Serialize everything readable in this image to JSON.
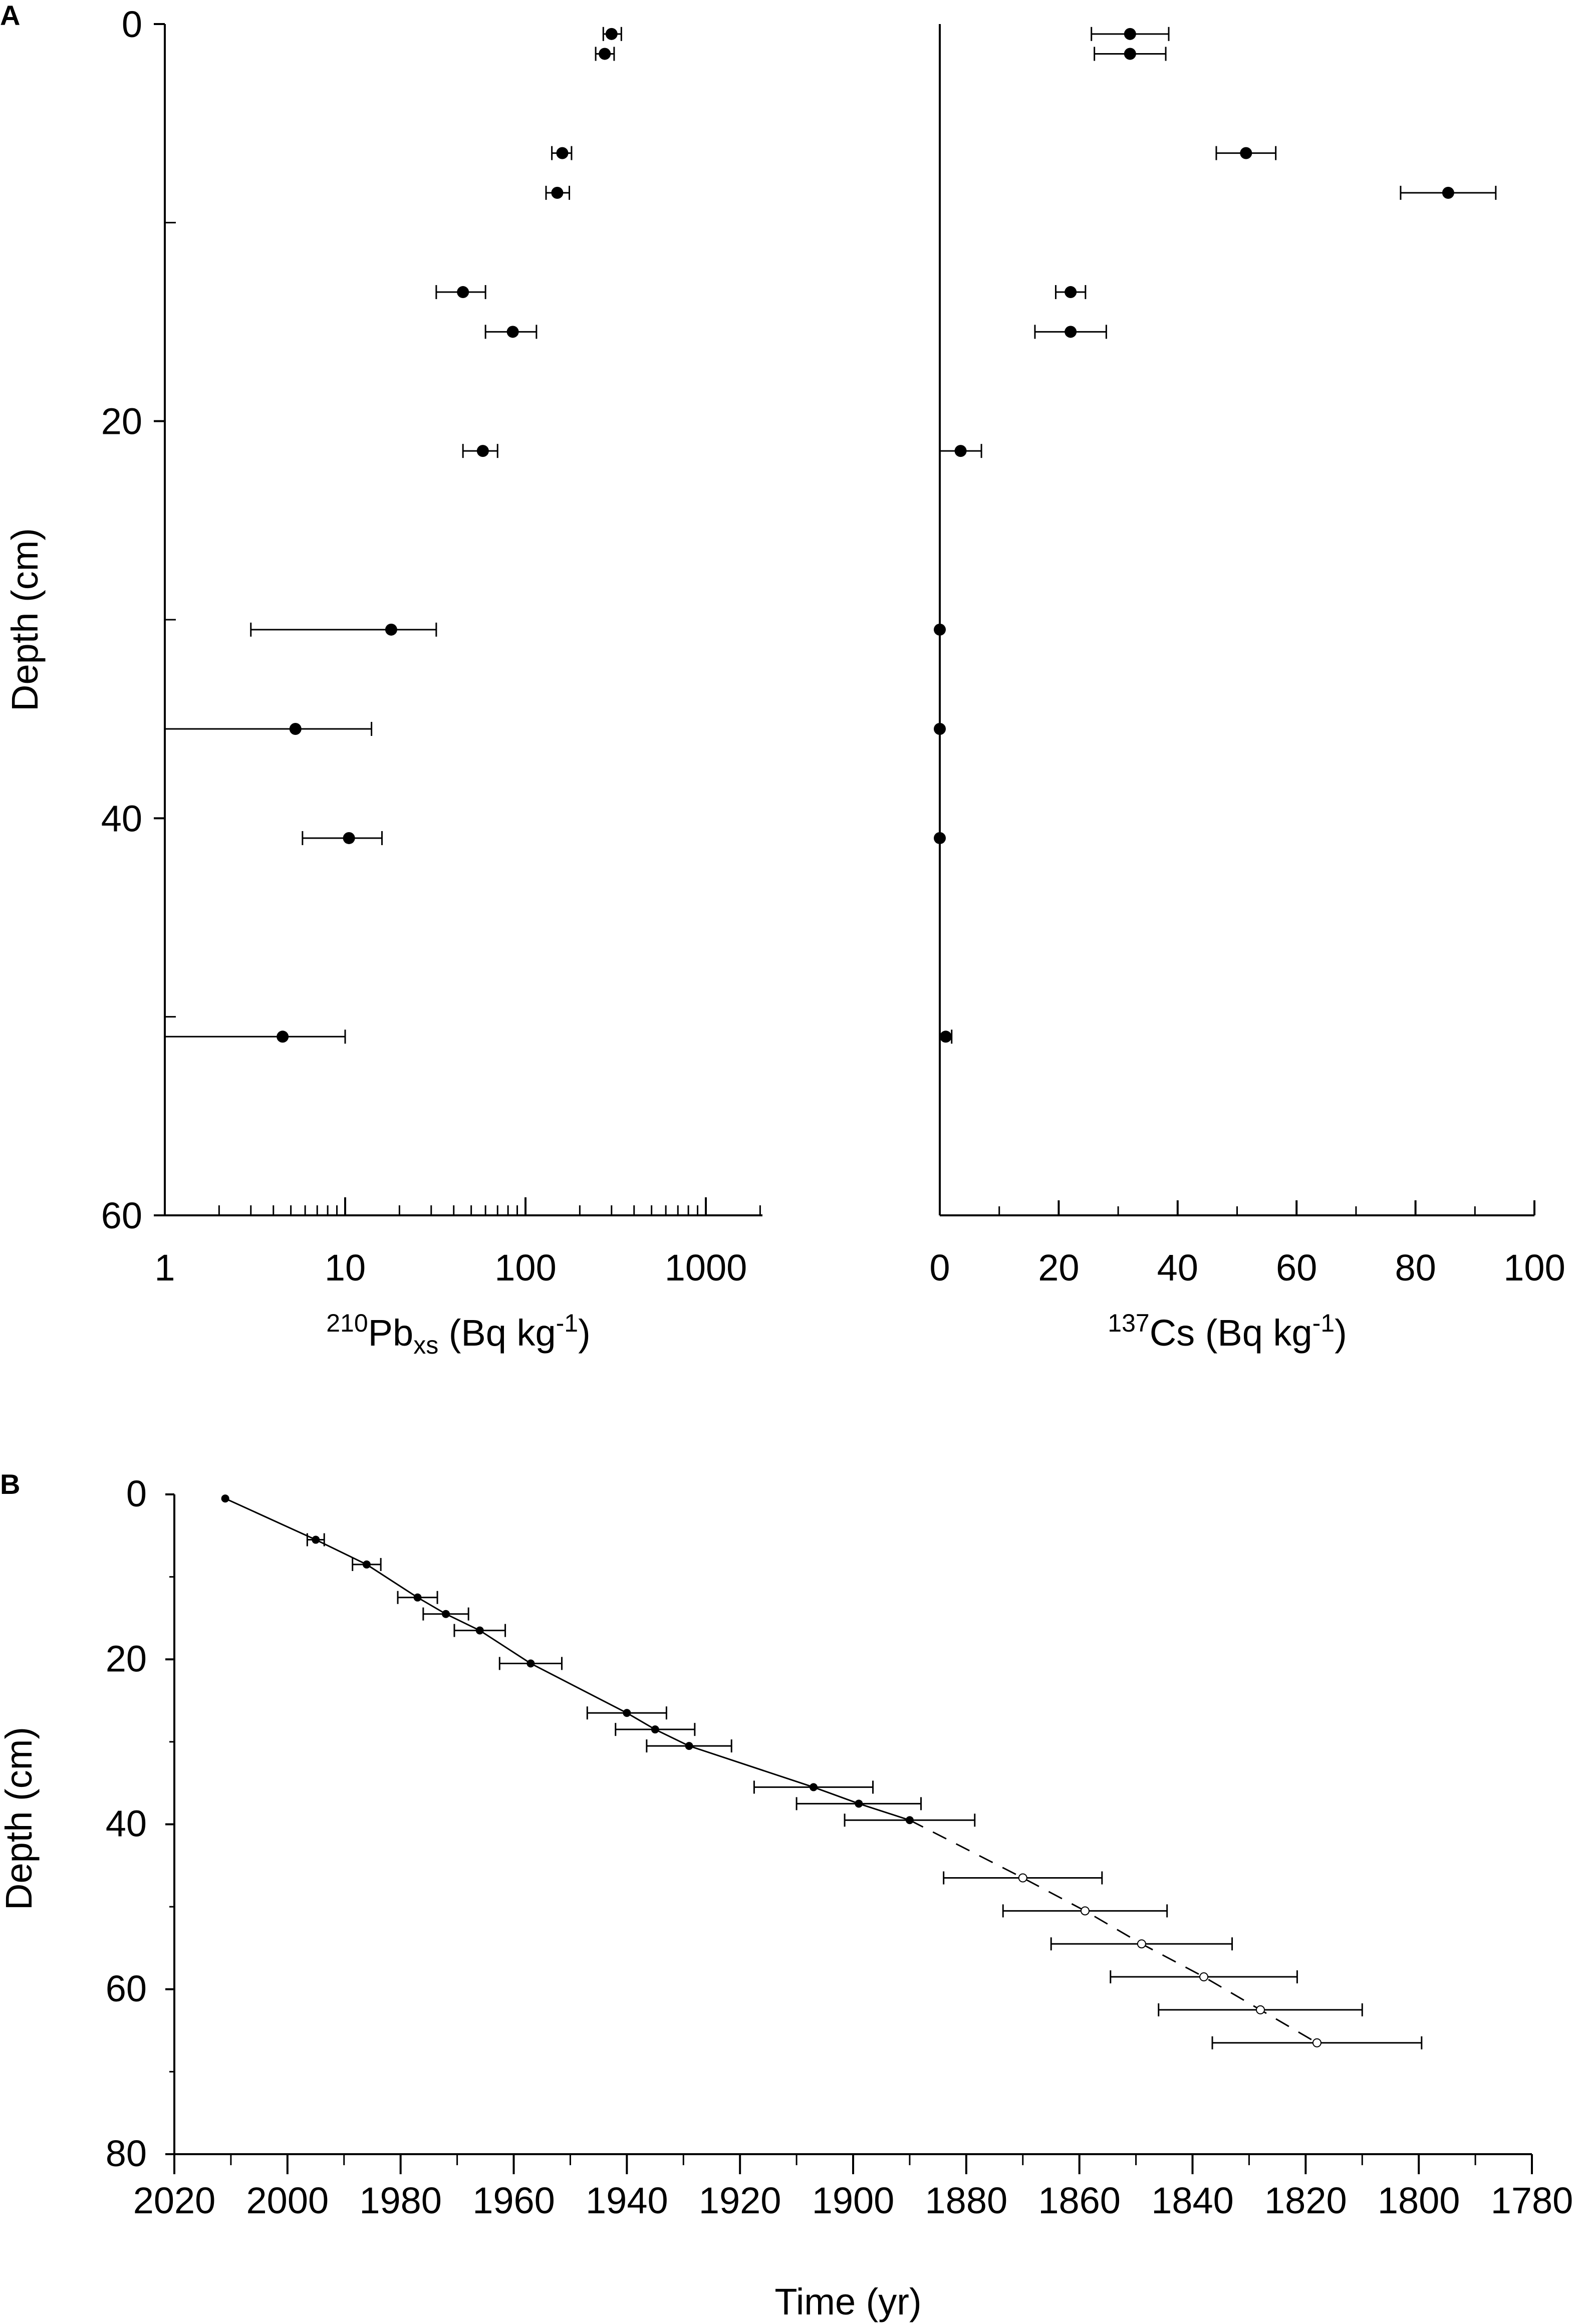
{
  "chart_data": [
    {
      "panel": "A",
      "type": "scatter",
      "title": "",
      "xlabel": {
        "sup": "210",
        "main": "Pb",
        "sub": "xs",
        "unit": " (Bq kg",
        "unit_sup": "-1",
        "close": ")"
      },
      "ylabel": "Depth (cm)",
      "xscale": "log",
      "xlim": [
        1,
        2000
      ],
      "ylim": [
        60,
        0
      ],
      "xticks": [
        1,
        10,
        100,
        1000
      ],
      "xtick_labels": [
        "1",
        "10",
        "100",
        "1000"
      ],
      "yticks": [
        0,
        20,
        40,
        60
      ],
      "ytick_labels": [
        "0",
        "20",
        "40",
        "60"
      ],
      "points": [
        {
          "y": 0.5,
          "x": 300,
          "xerr_low": 270,
          "xerr_high": 340
        },
        {
          "y": 1.5,
          "x": 275,
          "xerr_low": 245,
          "xerr_high": 310
        },
        {
          "y": 6.5,
          "x": 160,
          "xerr_low": 140,
          "xerr_high": 180
        },
        {
          "y": 8.5,
          "x": 150,
          "xerr_low": 130,
          "xerr_high": 175
        },
        {
          "y": 13.5,
          "x": 45,
          "xerr_low": 32,
          "xerr_high": 60
        },
        {
          "y": 15.5,
          "x": 85,
          "xerr_low": 60,
          "xerr_high": 115
        },
        {
          "y": 21.5,
          "x": 58,
          "xerr_low": 45,
          "xerr_high": 70
        },
        {
          "y": 30.5,
          "x": 18,
          "xerr_low": 3,
          "xerr_high": 32
        },
        {
          "y": 35.5,
          "x": 5.3,
          "xerr_low": 1,
          "xerr_high": 14
        },
        {
          "y": 41,
          "x": 10.5,
          "xerr_low": 5.8,
          "xerr_high": 16
        },
        {
          "y": 51,
          "x": 4.5,
          "xerr_low": 1,
          "xerr_high": 10
        }
      ]
    },
    {
      "panel": "",
      "type": "scatter",
      "title": "",
      "xlabel": {
        "sup": "137",
        "main": "Cs",
        "sub": "",
        "unit": " (Bq kg",
        "unit_sup": "-1",
        "close": ")"
      },
      "ylabel": "",
      "xlim": [
        0,
        100
      ],
      "ylim": [
        60,
        0
      ],
      "xticks": [
        0,
        20,
        40,
        60,
        80,
        100
      ],
      "xtick_labels": [
        "0",
        "20",
        "40",
        "60",
        "80",
        "100"
      ],
      "points": [
        {
          "y": 0.5,
          "x": 32,
          "xerr": 6.5
        },
        {
          "y": 1.5,
          "x": 32,
          "xerr": 6
        },
        {
          "y": 6.5,
          "x": 51.5,
          "xerr": 5
        },
        {
          "y": 8.5,
          "x": 85.5,
          "xerr": 8
        },
        {
          "y": 13.5,
          "x": 22,
          "xerr": 2.5
        },
        {
          "y": 15.5,
          "x": 22,
          "xerr": 6
        },
        {
          "y": 21.5,
          "x": 3.5,
          "xerr": 3.5
        },
        {
          "y": 30.5,
          "x": 0,
          "xerr": 0
        },
        {
          "y": 35.5,
          "x": 0,
          "xerr": 0
        },
        {
          "y": 41,
          "x": 0,
          "xerr": 0
        },
        {
          "y": 51,
          "x": 1,
          "xerr": 1
        }
      ]
    },
    {
      "panel": "B",
      "type": "line",
      "title": "",
      "xlabel": "Time (yr)",
      "ylabel": "Depth (cm)",
      "xlim": [
        2020,
        1780
      ],
      "ylim": [
        80,
        0
      ],
      "xticks": [
        2020,
        2000,
        1980,
        1960,
        1940,
        1920,
        1900,
        1880,
        1860,
        1840,
        1820,
        1800,
        1780
      ],
      "xtick_labels": [
        "2020",
        "2000",
        "1980",
        "1960",
        "1940",
        "1920",
        "1900",
        "1880",
        "1860",
        "1840",
        "1820",
        "1800",
        "1780"
      ],
      "yticks": [
        0,
        20,
        40,
        60,
        80
      ],
      "ytick_labels": [
        "0",
        "20",
        "40",
        "60",
        "80"
      ],
      "measured": [
        {
          "year": 2011,
          "depth": 0.5,
          "err": 0
        },
        {
          "year": 1995,
          "depth": 5.5,
          "err": 1.5
        },
        {
          "year": 1986,
          "depth": 8.5,
          "err": 2.5
        },
        {
          "year": 1977,
          "depth": 12.5,
          "err": 3.5
        },
        {
          "year": 1972,
          "depth": 14.5,
          "err": 4
        },
        {
          "year": 1966,
          "depth": 16.5,
          "err": 4.5
        },
        {
          "year": 1957,
          "depth": 20.5,
          "err": 5.5
        },
        {
          "year": 1940,
          "depth": 26.5,
          "err": 7
        },
        {
          "year": 1935,
          "depth": 28.5,
          "err": 7
        },
        {
          "year": 1929,
          "depth": 30.5,
          "err": 7.5
        },
        {
          "year": 1907,
          "depth": 35.5,
          "err": 10.5
        },
        {
          "year": 1899,
          "depth": 37.5,
          "err": 11
        },
        {
          "year": 1890,
          "depth": 39.5,
          "err": 11.5
        }
      ],
      "extrapolated": [
        {
          "year": 1870,
          "depth": 46.5,
          "err": 14
        },
        {
          "year": 1859,
          "depth": 50.5,
          "err": 14.5
        },
        {
          "year": 1849,
          "depth": 54.5,
          "err": 16
        },
        {
          "year": 1838,
          "depth": 58.5,
          "err": 16.5
        },
        {
          "year": 1828,
          "depth": 62.5,
          "err": 18
        },
        {
          "year": 1818,
          "depth": 66.5,
          "err": 18.5
        }
      ]
    }
  ]
}
